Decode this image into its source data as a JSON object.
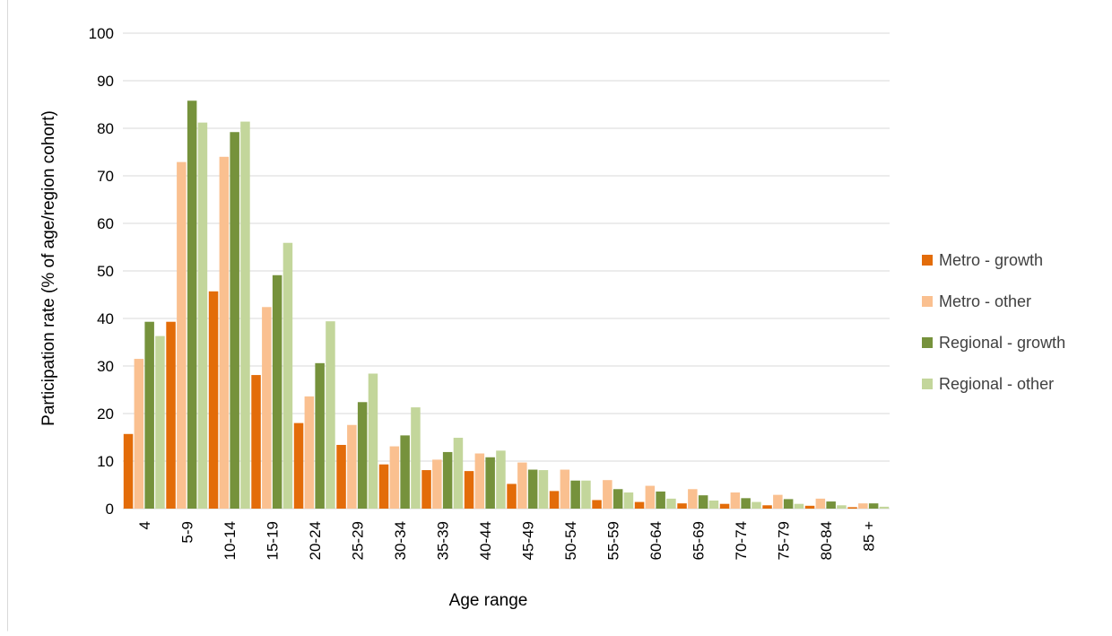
{
  "chart_data": {
    "type": "bar",
    "xlabel": "Age range",
    "ylabel": "Participation rate (% of age/region cohort)",
    "ylim": [
      0,
      100
    ],
    "yticks": [
      0,
      10,
      20,
      30,
      40,
      50,
      60,
      70,
      80,
      90,
      100
    ],
    "grid": true,
    "legend_position": "right",
    "categories": [
      "4",
      "5-9",
      "10-14",
      "15-19",
      "20-24",
      "25-29",
      "30-34",
      "35-39",
      "40-44",
      "45-49",
      "50-54",
      "55-59",
      "60-64",
      "65-69",
      "70-74",
      "75-79",
      "80-84",
      "85 +"
    ],
    "series": [
      {
        "name": "Metro - growth",
        "color": "#e36c09",
        "values": [
          15.7,
          39.3,
          45.7,
          28.1,
          18.0,
          13.4,
          9.3,
          8.1,
          7.9,
          5.2,
          3.7,
          1.8,
          1.4,
          1.1,
          1.0,
          0.7,
          0.6,
          0.3
        ]
      },
      {
        "name": "Metro - other",
        "color": "#fac090",
        "values": [
          31.5,
          72.9,
          74.0,
          42.4,
          23.6,
          17.6,
          13.1,
          10.3,
          11.6,
          9.7,
          8.2,
          6.0,
          4.8,
          4.1,
          3.4,
          2.9,
          2.1,
          1.1
        ]
      },
      {
        "name": "Regional - growth",
        "color": "#76923c",
        "values": [
          39.3,
          85.8,
          79.2,
          49.1,
          30.6,
          22.4,
          15.4,
          11.9,
          10.8,
          8.2,
          5.9,
          4.1,
          3.6,
          2.8,
          2.2,
          2.0,
          1.5,
          1.1
        ]
      },
      {
        "name": "Regional - other",
        "color": "#c3d69b",
        "values": [
          36.3,
          81.2,
          81.4,
          55.9,
          39.4,
          28.4,
          21.3,
          14.9,
          12.2,
          8.1,
          5.9,
          3.4,
          2.1,
          1.7,
          1.4,
          1.0,
          0.7,
          0.4
        ]
      }
    ]
  }
}
